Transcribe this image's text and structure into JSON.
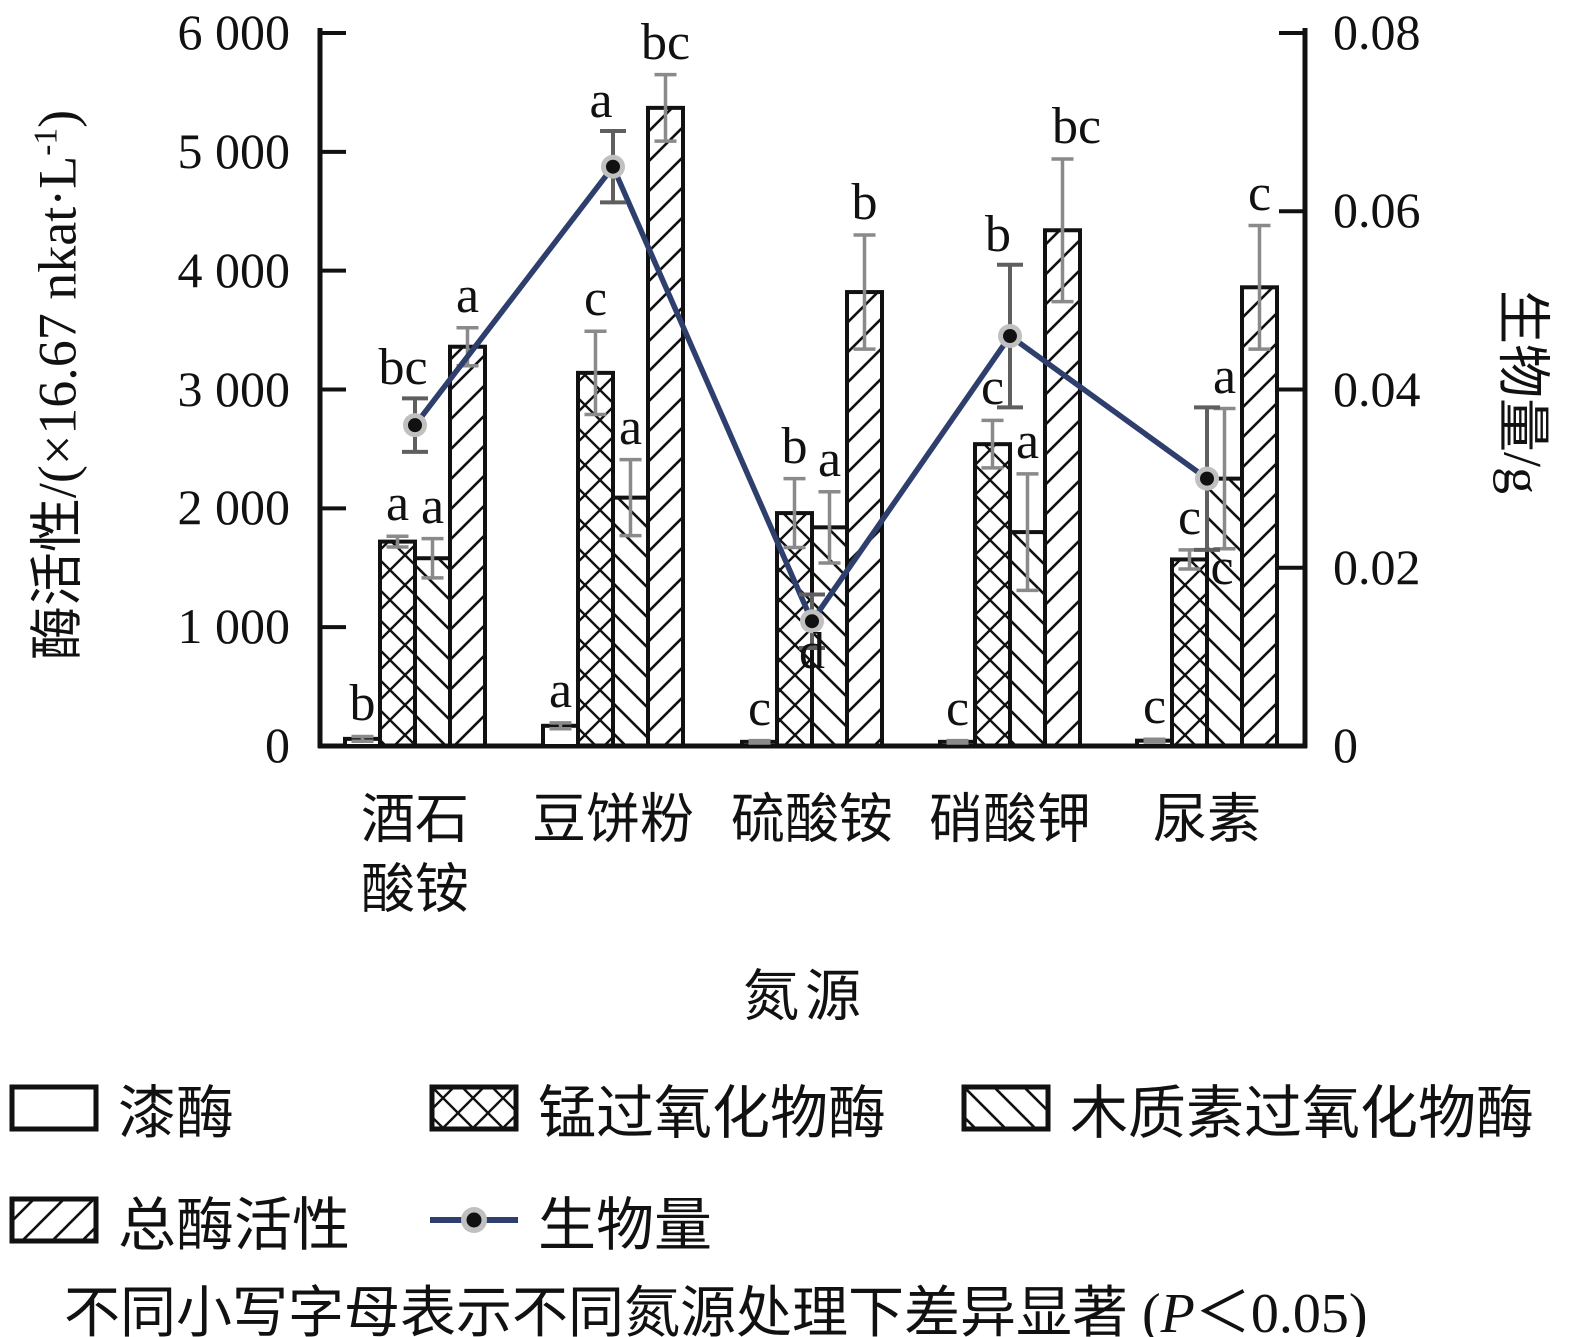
{
  "figure_type": "dual-axis grouped bar and line chart",
  "axes": {
    "left": {
      "title_pre": "酶活性/(×16.67 nkat·L",
      "title_sup": "-1",
      "title_post": ")",
      "tick_labels": [
        "0",
        "1 000",
        "2 000",
        "3 000",
        "4 000",
        "5 000",
        "6 000"
      ],
      "tick_values": [
        0,
        1000,
        2000,
        3000,
        4000,
        5000,
        6000
      ]
    },
    "right": {
      "title": "生物量/g",
      "tick_labels": [
        "0",
        "0.02",
        "0.04",
        "0.06",
        "0.08"
      ],
      "tick_values": [
        0,
        0.02,
        0.04,
        0.06,
        0.08
      ]
    },
    "x": {
      "title": "氮源",
      "category_lines": [
        [
          "酒石",
          "酸铵"
        ],
        [
          "豆饼粉"
        ],
        [
          "硫酸铵"
        ],
        [
          "硝酸钾"
        ],
        [
          "尿素"
        ]
      ]
    }
  },
  "chart_data": {
    "type": "bar",
    "subtype": "grouped bars with overlaid line on secondary axis",
    "categories": [
      "酒石酸铵",
      "豆饼粉",
      "硫酸铵",
      "硝酸钾",
      "尿素"
    ],
    "xlabel": "氮源",
    "ylabel": "酶活性/(×16.67 nkat·L-1)",
    "y2label": "生物量/g",
    "ylim": [
      0,
      6000
    ],
    "y2lim": [
      0,
      0.08
    ],
    "grid": false,
    "legend_position": "below plot, two rows",
    "series": [
      {
        "name": "漆酶",
        "type": "bar",
        "pattern": "plain",
        "axis": "left",
        "values": [
          60,
          170,
          35,
          35,
          45
        ],
        "errors": [
          20,
          25,
          10,
          10,
          12
        ],
        "letters": [
          "b",
          "a",
          "c",
          "c",
          "c"
        ]
      },
      {
        "name": "锰过氧化物酶",
        "type": "bar",
        "pattern": "crosshatch",
        "axis": "left",
        "values": [
          1720,
          3140,
          1960,
          2540,
          1570
        ],
        "errors": [
          45,
          350,
          290,
          200,
          80
        ],
        "letters": [
          "a",
          "c",
          "b",
          "c",
          "c"
        ]
      },
      {
        "name": "木质素过氧化物酶",
        "type": "bar",
        "pattern": "diag-back",
        "axis": "left",
        "values": [
          1580,
          2090,
          1840,
          1800,
          2250
        ],
        "errors": [
          165,
          320,
          300,
          490,
          590
        ],
        "letters": [
          "a",
          "a",
          "a",
          "a",
          "a"
        ]
      },
      {
        "name": "总酶活性",
        "type": "bar",
        "pattern": "diag-fwd",
        "axis": "left",
        "values": [
          3360,
          5370,
          3820,
          4340,
          3860
        ],
        "errors": [
          160,
          280,
          480,
          600,
          520
        ],
        "letters": [
          "a",
          "bc",
          "b",
          "bc",
          "c"
        ]
      },
      {
        "name": "生物量",
        "type": "line",
        "axis": "right",
        "values": [
          0.036,
          0.065,
          0.014,
          0.046,
          0.03
        ],
        "errors": [
          0.003,
          0.004,
          0.003,
          0.008,
          0.008
        ],
        "letters": [
          "bc",
          "a",
          "d",
          "b",
          "c"
        ]
      }
    ]
  },
  "legend": {
    "items": [
      {
        "label": "漆酶",
        "swatch": "plain"
      },
      {
        "label": "锰过氧化物酶",
        "swatch": "crosshatch"
      },
      {
        "label": "木质素过氧化物酶",
        "swatch": "diag-back"
      },
      {
        "label": "总酶活性",
        "swatch": "diag-fwd"
      },
      {
        "label": "生物量",
        "swatch": "line-dot"
      }
    ]
  },
  "caption": {
    "prefix": "不同小写字母表示不同氮源处理下差异显著 (",
    "p_symbol": "P",
    "suffix": "＜0.05)"
  },
  "colors": {
    "ink": "#111111",
    "line_series": "#2e3f6e",
    "marker_core": "#111111",
    "marker_halo": "#c0c0c0",
    "error_bar": "#8a8a8a",
    "error_bar_dark": "#5f5f5f"
  }
}
